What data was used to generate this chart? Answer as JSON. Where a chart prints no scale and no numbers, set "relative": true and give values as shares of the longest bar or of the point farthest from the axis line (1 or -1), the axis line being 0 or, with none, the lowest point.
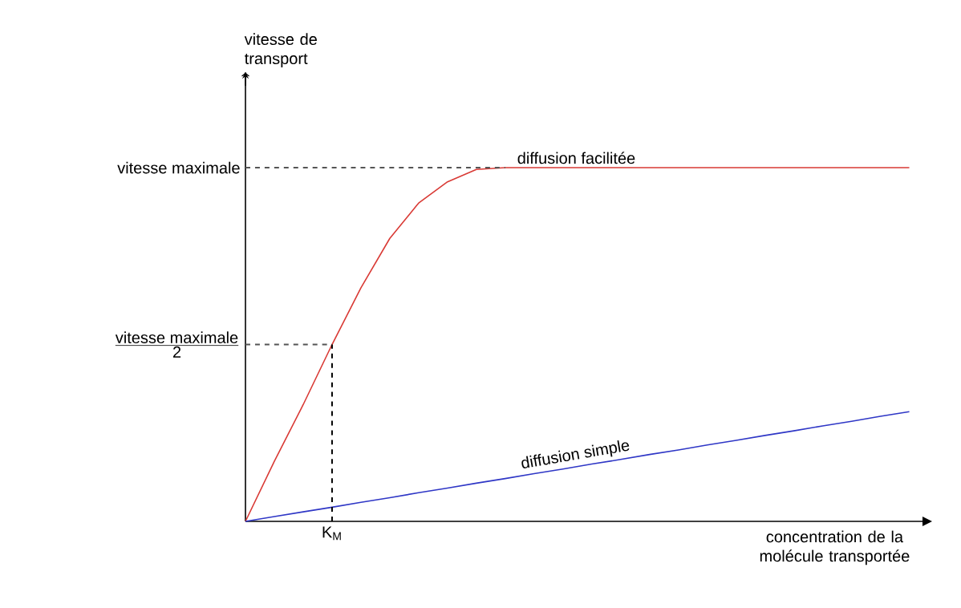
{
  "chart_data": {
    "type": "line",
    "relative": true,
    "xlabel": "concentration de la molécule transportée",
    "annotations": [
      "K$_{M}$",
      "vitesse de transport"
    ],
    "categories": [
      null,
      null,
      null,
      null,
      null,
      null,
      null,
      null,
      null,
      null,
      null,
      null,
      null,
      null,
      null,
      null,
      null,
      null,
      null,
      null,
      null,
      null,
      null,
      null
    ],
    "series": [
      {
        "name": "diffusion facilitée",
        "color": "#d93a35",
        "values": [
          0,
          0.17,
          0.33,
          0.5,
          0.66,
          0.8,
          0.9,
          0.96,
          0.995,
          1,
          1,
          1,
          1,
          1,
          1,
          1,
          1,
          1,
          1,
          1,
          1,
          1,
          1,
          1
        ]
      },
      {
        "name": "diffusion simple",
        "color": "#2f37c6",
        "values": [
          0,
          0.0135,
          0.027,
          0.04,
          0.054,
          0.067,
          0.081,
          0.094,
          0.108,
          0.121,
          0.135,
          0.148,
          0.162,
          0.175,
          0.189,
          0.202,
          0.216,
          0.229,
          0.243,
          0.256,
          0.27,
          0.283,
          0.297,
          0.31
        ]
      }
    ],
    "ref_lines": [
      {
        "axis": "y",
        "value": 1,
        "label": "\\mbox{vitesse maximale}",
        "color": "#555555",
        "line_style": "dashed"
      },
      {
        "axis": "y",
        "value": 0.5,
        "label": "\\frac{\\mbox{vitesse maximale}}{\\mbox{2}}",
        "color": "#555555",
        "line_style": "dashed"
      }
    ],
    "line_style": "solid",
    "marker": "none"
  }
}
